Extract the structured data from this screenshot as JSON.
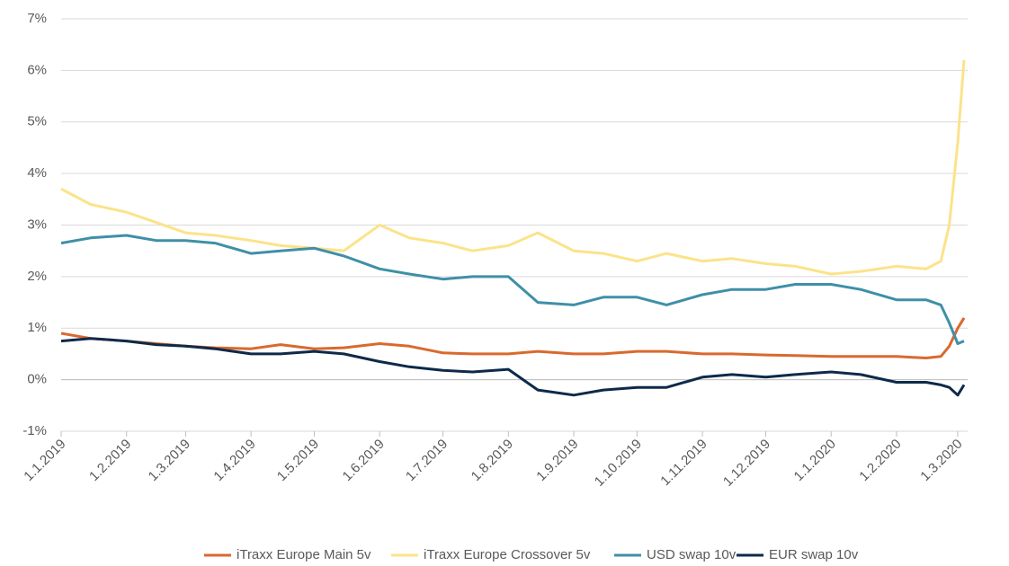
{
  "chart_data": {
    "type": "line",
    "x": [
      "2019-01-01",
      "2019-01-15",
      "2019-02-01",
      "2019-02-15",
      "2019-03-01",
      "2019-03-15",
      "2019-04-01",
      "2019-04-15",
      "2019-05-01",
      "2019-05-15",
      "2019-06-01",
      "2019-06-15",
      "2019-07-01",
      "2019-07-15",
      "2019-08-01",
      "2019-08-15",
      "2019-09-01",
      "2019-09-15",
      "2019-10-01",
      "2019-10-15",
      "2019-11-01",
      "2019-11-15",
      "2019-12-01",
      "2019-12-15",
      "2020-01-01",
      "2020-01-15",
      "2020-02-01",
      "2020-02-15",
      "2020-02-22",
      "2020-02-26",
      "2020-03-01",
      "2020-03-04"
    ],
    "series": [
      {
        "name": "iTraxx Europe Main 5v",
        "color": "#d9692e",
        "values": [
          0.9,
          0.8,
          0.75,
          0.7,
          0.65,
          0.62,
          0.6,
          0.68,
          0.6,
          0.62,
          0.7,
          0.65,
          0.52,
          0.5,
          0.5,
          0.55,
          0.5,
          0.5,
          0.55,
          0.55,
          0.5,
          0.5,
          0.48,
          0.47,
          0.45,
          0.45,
          0.45,
          0.42,
          0.45,
          0.65,
          1.0,
          1.2
        ]
      },
      {
        "name": "iTraxx Europe Crossover 5v",
        "color": "#fbe38a",
        "values": [
          3.7,
          3.4,
          3.25,
          3.05,
          2.85,
          2.8,
          2.7,
          2.6,
          2.55,
          2.5,
          3.0,
          2.75,
          2.65,
          2.5,
          2.6,
          2.85,
          2.5,
          2.45,
          2.3,
          2.45,
          2.3,
          2.35,
          2.25,
          2.2,
          2.05,
          2.1,
          2.2,
          2.15,
          2.3,
          3.0,
          4.6,
          6.2
        ]
      },
      {
        "name": "USD swap 10v",
        "color": "#3f8fa8",
        "values": [
          2.65,
          2.75,
          2.8,
          2.7,
          2.7,
          2.65,
          2.45,
          2.5,
          2.55,
          2.4,
          2.15,
          2.05,
          1.95,
          2.0,
          2.0,
          1.5,
          1.45,
          1.6,
          1.6,
          1.45,
          1.65,
          1.75,
          1.75,
          1.85,
          1.85,
          1.75,
          1.55,
          1.55,
          1.45,
          1.1,
          0.7,
          0.75
        ]
      },
      {
        "name": "EUR swap 10v",
        "color": "#0d2a4a",
        "values": [
          0.75,
          0.8,
          0.75,
          0.68,
          0.65,
          0.6,
          0.5,
          0.5,
          0.55,
          0.5,
          0.35,
          0.25,
          0.18,
          0.15,
          0.2,
          -0.2,
          -0.3,
          -0.2,
          -0.15,
          -0.15,
          0.05,
          0.1,
          0.05,
          0.1,
          0.15,
          0.1,
          -0.05,
          -0.05,
          -0.1,
          -0.15,
          -0.3,
          -0.1
        ]
      }
    ],
    "xlim": [
      "2019-01-01",
      "2020-03-04"
    ],
    "xticks": [
      {
        "value": "2019-01-01",
        "label": "1.1.2019"
      },
      {
        "value": "2019-02-01",
        "label": "1.2.2019"
      },
      {
        "value": "2019-03-01",
        "label": "1.3.2019"
      },
      {
        "value": "2019-04-01",
        "label": "1.4.2019"
      },
      {
        "value": "2019-05-01",
        "label": "1.5.2019"
      },
      {
        "value": "2019-06-01",
        "label": "1.6.2019"
      },
      {
        "value": "2019-07-01",
        "label": "1.7.2019"
      },
      {
        "value": "2019-08-01",
        "label": "1.8.2019"
      },
      {
        "value": "2019-09-01",
        "label": "1.9.2019"
      },
      {
        "value": "2019-10-01",
        "label": "1.10.2019"
      },
      {
        "value": "2019-11-01",
        "label": "1.11.2019"
      },
      {
        "value": "2019-12-01",
        "label": "1.12.2019"
      },
      {
        "value": "2020-01-01",
        "label": "1.1.2020"
      },
      {
        "value": "2020-02-01",
        "label": "1.2.2020"
      },
      {
        "value": "2020-03-01",
        "label": "1.3.2020"
      }
    ],
    "ylim": [
      -1,
      7
    ],
    "yticks": [
      {
        "value": -1,
        "label": "-1%"
      },
      {
        "value": 0,
        "label": "0%"
      },
      {
        "value": 1,
        "label": "1%"
      },
      {
        "value": 2,
        "label": "2%"
      },
      {
        "value": 3,
        "label": "3%"
      },
      {
        "value": 4,
        "label": "4%"
      },
      {
        "value": 5,
        "label": "5%"
      },
      {
        "value": 6,
        "label": "6%"
      },
      {
        "value": 7,
        "label": "7%"
      }
    ],
    "grid": true,
    "legend": "bottom"
  }
}
